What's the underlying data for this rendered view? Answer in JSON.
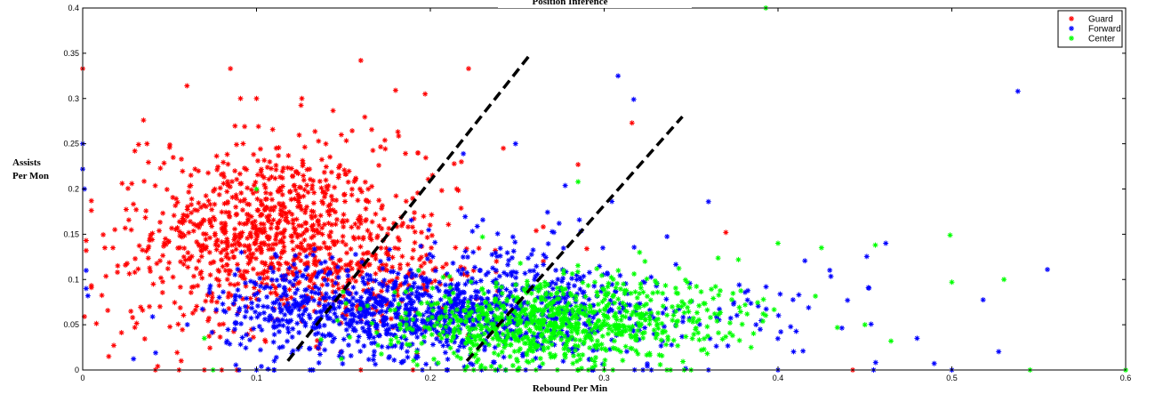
{
  "chart_data": {
    "type": "scatter",
    "title": "Position Inference",
    "xlabel": "Rebound Per Min",
    "ylabel_lines": [
      "Assists",
      "Per Mon"
    ],
    "xlim": [
      0,
      0.6
    ],
    "ylim": [
      0,
      0.4
    ],
    "x_ticks": [
      "0",
      "0.1",
      "0.2",
      "0.3",
      "0.4",
      "0.5",
      "0.6"
    ],
    "y_ticks": [
      "0",
      "0.05",
      "0.1",
      "0.15",
      "0.2",
      "0.25",
      "0.3",
      "0.35",
      "0.4"
    ],
    "grid": false,
    "legend_position": "top-right",
    "marker": "asterisk",
    "series": [
      {
        "name": "Guard",
        "color": "#ff0000",
        "clusters": [
          {
            "cx": 0.105,
            "cy": 0.155,
            "sx": 0.032,
            "sy": 0.045,
            "n": 700
          },
          {
            "cx": 0.16,
            "cy": 0.11,
            "sx": 0.035,
            "sy": 0.035,
            "n": 250
          },
          {
            "cx": 0.15,
            "cy": 0.17,
            "sx": 0.05,
            "sy": 0.07,
            "n": 100
          },
          {
            "cx": 0.06,
            "cy": 0.1,
            "sx": 0.03,
            "sy": 0.05,
            "n": 80
          }
        ],
        "points": [
          [
            0.0,
            0.333
          ],
          [
            0.085,
            0.333
          ],
          [
            0.16,
            0.342
          ],
          [
            0.222,
            0.333
          ],
          [
            0.06,
            0.314
          ],
          [
            0.1,
            0.3
          ],
          [
            0.18,
            0.309
          ],
          [
            0.197,
            0.305
          ],
          [
            0.316,
            0.273
          ],
          [
            0.035,
            0.276
          ],
          [
            0.037,
            0.25
          ],
          [
            0.05,
            0.246
          ],
          [
            0.03,
            0.242
          ],
          [
            0.285,
            0.227
          ],
          [
            0.242,
            0.245
          ],
          [
            0.002,
            0.143
          ],
          [
            0.002,
            0.132
          ],
          [
            0.001,
            0.059
          ],
          [
            0.015,
            0.015
          ],
          [
            0.03,
            0.047
          ],
          [
            0.02,
            0.108
          ],
          [
            0.03,
            0.108
          ],
          [
            0.04,
            0.144
          ],
          [
            0.37,
            0.152
          ],
          [
            0.2,
            0.12
          ],
          [
            0.265,
            0.12
          ],
          [
            0.12,
            0.08
          ],
          [
            0.29,
            0.134
          ],
          [
            0.443,
            0.0
          ],
          [
            0.07,
            0.0
          ],
          [
            0.08,
            0.0
          ],
          [
            0.16,
            0.0
          ],
          [
            0.19,
            0.0
          ]
        ]
      },
      {
        "name": "Forward",
        "color": "#0000ff",
        "clusters": [
          {
            "cx": 0.19,
            "cy": 0.065,
            "sx": 0.05,
            "sy": 0.025,
            "n": 800
          },
          {
            "cx": 0.13,
            "cy": 0.075,
            "sx": 0.03,
            "sy": 0.03,
            "n": 150
          },
          {
            "cx": 0.27,
            "cy": 0.06,
            "sx": 0.05,
            "sy": 0.03,
            "n": 250
          },
          {
            "cx": 0.25,
            "cy": 0.12,
            "sx": 0.04,
            "sy": 0.03,
            "n": 60
          },
          {
            "cx": 0.4,
            "cy": 0.06,
            "sx": 0.05,
            "sy": 0.03,
            "n": 40
          }
        ],
        "points": [
          [
            0.308,
            0.325
          ],
          [
            0.317,
            0.299
          ],
          [
            0.538,
            0.308
          ],
          [
            0.0,
            0.25
          ],
          [
            0.0,
            0.222
          ],
          [
            0.249,
            0.25
          ],
          [
            0.219,
            0.239
          ],
          [
            0.36,
            0.186
          ],
          [
            0.001,
            0.2
          ],
          [
            0.002,
            0.11
          ],
          [
            0.002,
            0.09
          ],
          [
            0.003,
            0.082
          ],
          [
            0.555,
            0.111
          ],
          [
            0.462,
            0.14
          ],
          [
            0.452,
            0.091
          ],
          [
            0.44,
            0.077
          ],
          [
            0.412,
            0.083
          ],
          [
            0.48,
            0.035
          ],
          [
            0.36,
            0.0
          ],
          [
            0.09,
            0.0
          ],
          [
            0.1,
            0.0
          ],
          [
            0.11,
            0.0
          ],
          [
            0.21,
            0.0
          ],
          [
            0.4,
            0.0
          ],
          [
            0.455,
            0.0
          ],
          [
            0.5,
            0.0
          ]
        ]
      },
      {
        "name": "Center",
        "color": "#00ff00",
        "clusters": [
          {
            "cx": 0.27,
            "cy": 0.05,
            "sx": 0.04,
            "sy": 0.022,
            "n": 650
          },
          {
            "cx": 0.33,
            "cy": 0.06,
            "sx": 0.04,
            "sy": 0.025,
            "n": 150
          },
          {
            "cx": 0.22,
            "cy": 0.05,
            "sx": 0.03,
            "sy": 0.02,
            "n": 100
          }
        ],
        "points": [
          [
            0.393,
            0.4
          ],
          [
            0.1,
            0.2
          ],
          [
            0.285,
            0.208
          ],
          [
            0.4,
            0.14
          ],
          [
            0.425,
            0.135
          ],
          [
            0.456,
            0.138
          ],
          [
            0.499,
            0.149
          ],
          [
            0.53,
            0.1
          ],
          [
            0.5,
            0.097
          ],
          [
            0.465,
            0.032
          ],
          [
            0.23,
            0.147
          ],
          [
            0.45,
            0.05
          ],
          [
            0.07,
            0.035
          ],
          [
            0.545,
            0.0
          ],
          [
            0.6,
            0.0
          ],
          [
            0.075,
            0.0
          ],
          [
            0.22,
            0.0
          ],
          [
            0.25,
            0.0
          ],
          [
            0.3,
            0.0
          ],
          [
            0.35,
            0.0
          ]
        ]
      }
    ],
    "annotations": [
      {
        "type": "dashed-line",
        "color": "#000000",
        "from": [
          0.118,
          0.01
        ],
        "to": [
          0.258,
          0.35
        ]
      },
      {
        "type": "dashed-line",
        "color": "#000000",
        "from": [
          0.221,
          0.01
        ],
        "to": [
          0.345,
          0.28
        ]
      }
    ]
  }
}
